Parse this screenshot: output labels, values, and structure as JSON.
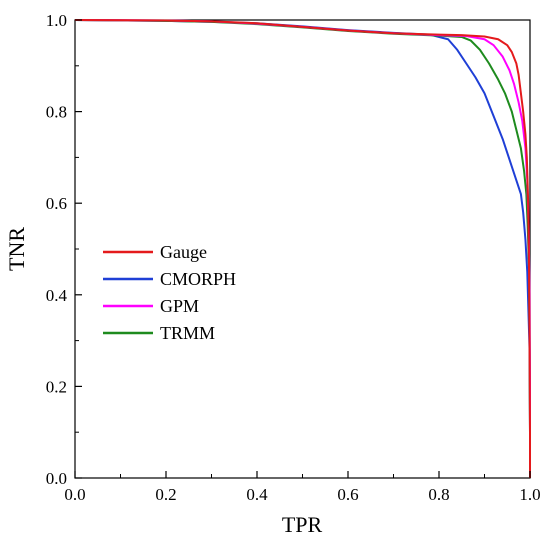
{
  "chart_data": {
    "type": "line",
    "title": "",
    "xlabel": "TPR",
    "ylabel": "TNR",
    "xlim": [
      0.0,
      1.0
    ],
    "ylim": [
      0.0,
      1.0
    ],
    "xticks": [
      "0.0",
      "0.2",
      "0.4",
      "0.6",
      "0.8",
      "1.0"
    ],
    "yticks": [
      "0.0",
      "0.2",
      "0.4",
      "0.6",
      "0.8",
      "1.0"
    ],
    "grid": false,
    "legend_position": "center-left",
    "series": [
      {
        "name": "Gauge",
        "color": "#e41a1c",
        "points": [
          [
            0.0,
            1.0
          ],
          [
            0.2,
            0.999
          ],
          [
            0.3,
            0.997
          ],
          [
            0.4,
            0.993
          ],
          [
            0.5,
            0.985
          ],
          [
            0.6,
            0.977
          ],
          [
            0.7,
            0.971
          ],
          [
            0.8,
            0.968
          ],
          [
            0.85,
            0.967
          ],
          [
            0.9,
            0.964
          ],
          [
            0.93,
            0.958
          ],
          [
            0.95,
            0.945
          ],
          [
            0.96,
            0.93
          ],
          [
            0.97,
            0.905
          ],
          [
            0.975,
            0.88
          ],
          [
            0.98,
            0.84
          ],
          [
            0.985,
            0.8
          ],
          [
            0.99,
            0.75
          ],
          [
            0.993,
            0.7
          ],
          [
            0.996,
            0.6
          ],
          [
            0.998,
            0.45
          ],
          [
            0.999,
            0.3
          ],
          [
            1.0,
            0.1
          ],
          [
            1.0,
            0.0
          ]
        ]
      },
      {
        "name": "CMORPH",
        "color": "#1f3fd6",
        "points": [
          [
            0.0,
            1.0
          ],
          [
            0.2,
            0.998
          ],
          [
            0.3,
            0.996
          ],
          [
            0.4,
            0.993
          ],
          [
            0.5,
            0.986
          ],
          [
            0.6,
            0.978
          ],
          [
            0.7,
            0.972
          ],
          [
            0.78,
            0.968
          ],
          [
            0.82,
            0.958
          ],
          [
            0.84,
            0.935
          ],
          [
            0.86,
            0.905
          ],
          [
            0.88,
            0.875
          ],
          [
            0.9,
            0.84
          ],
          [
            0.92,
            0.79
          ],
          [
            0.94,
            0.74
          ],
          [
            0.95,
            0.71
          ],
          [
            0.96,
            0.68
          ],
          [
            0.97,
            0.65
          ],
          [
            0.98,
            0.62
          ],
          [
            0.985,
            0.58
          ],
          [
            0.99,
            0.52
          ],
          [
            0.994,
            0.45
          ],
          [
            0.997,
            0.35
          ],
          [
            0.999,
            0.28
          ],
          [
            1.0,
            0.1
          ],
          [
            1.0,
            0.0
          ]
        ]
      },
      {
        "name": "GPM",
        "color": "#ff00ff",
        "points": [
          [
            0.0,
            1.0
          ],
          [
            0.2,
            0.999
          ],
          [
            0.3,
            0.997
          ],
          [
            0.4,
            0.992
          ],
          [
            0.5,
            0.985
          ],
          [
            0.6,
            0.977
          ],
          [
            0.7,
            0.971
          ],
          [
            0.8,
            0.967
          ],
          [
            0.86,
            0.965
          ],
          [
            0.9,
            0.958
          ],
          [
            0.92,
            0.945
          ],
          [
            0.94,
            0.92
          ],
          [
            0.955,
            0.89
          ],
          [
            0.965,
            0.86
          ],
          [
            0.975,
            0.82
          ],
          [
            0.983,
            0.78
          ],
          [
            0.99,
            0.72
          ],
          [
            0.994,
            0.65
          ],
          [
            0.997,
            0.55
          ],
          [
            0.999,
            0.4
          ],
          [
            1.0,
            0.2
          ],
          [
            1.0,
            0.0
          ]
        ]
      },
      {
        "name": "TRMM",
        "color": "#1e8b1e",
        "points": [
          [
            0.0,
            1.0
          ],
          [
            0.2,
            0.998
          ],
          [
            0.3,
            0.996
          ],
          [
            0.4,
            0.991
          ],
          [
            0.5,
            0.984
          ],
          [
            0.6,
            0.976
          ],
          [
            0.7,
            0.97
          ],
          [
            0.8,
            0.966
          ],
          [
            0.85,
            0.963
          ],
          [
            0.87,
            0.955
          ],
          [
            0.89,
            0.935
          ],
          [
            0.91,
            0.905
          ],
          [
            0.93,
            0.87
          ],
          [
            0.945,
            0.84
          ],
          [
            0.96,
            0.8
          ],
          [
            0.97,
            0.76
          ],
          [
            0.98,
            0.72
          ],
          [
            0.987,
            0.67
          ],
          [
            0.992,
            0.62
          ],
          [
            0.995,
            0.55
          ],
          [
            0.998,
            0.45
          ],
          [
            0.999,
            0.3
          ],
          [
            1.0,
            0.1
          ],
          [
            1.0,
            0.0
          ]
        ]
      }
    ]
  }
}
